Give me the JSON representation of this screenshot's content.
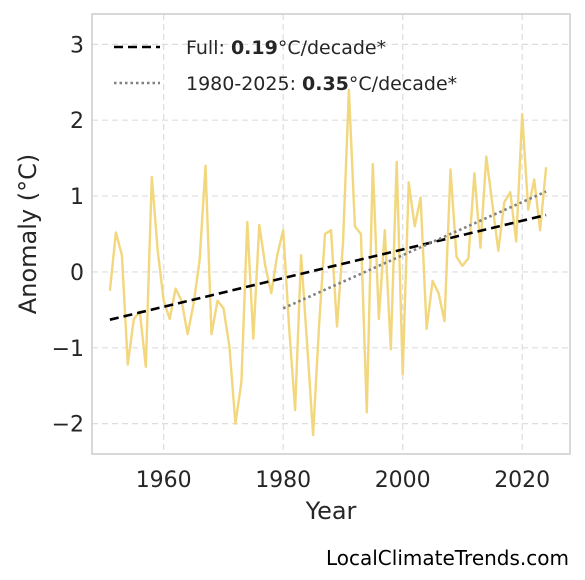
{
  "chart_data": {
    "type": "line",
    "xlabel": "Year",
    "ylabel": "Anomaly (°C)",
    "xlim": [
      1948,
      2028
    ],
    "ylim": [
      -2.4,
      3.4
    ],
    "x_ticks": [
      1960,
      1980,
      2000,
      2020
    ],
    "x_tick_labels": [
      "1960",
      "1980",
      "2000",
      "2020"
    ],
    "y_ticks": [
      -2,
      -1,
      0,
      1,
      2,
      3
    ],
    "y_tick_labels": [
      "−2",
      "−1",
      "0",
      "1",
      "2",
      "3"
    ],
    "grid": true,
    "legend_position": "top-left",
    "series": [
      {
        "style": "solid",
        "color": "#f2d77e",
        "x": [
          1951,
          1952,
          1953,
          1954,
          1955,
          1956,
          1957,
          1958,
          1959,
          1960,
          1961,
          1962,
          1963,
          1964,
          1965,
          1966,
          1967,
          1968,
          1969,
          1970,
          1971,
          1972,
          1973,
          1974,
          1975,
          1976,
          1977,
          1978,
          1979,
          1980,
          1981,
          1982,
          1983,
          1984,
          1985,
          1986,
          1987,
          1988,
          1989,
          1990,
          1991,
          1992,
          1993,
          1994,
          1995,
          1996,
          1997,
          1998,
          1999,
          2000,
          2001,
          2002,
          2003,
          2004,
          2005,
          2006,
          2007,
          2008,
          2009,
          2010,
          2011,
          2012,
          2013,
          2014,
          2015,
          2016,
          2017,
          2018,
          2019,
          2020,
          2021,
          2022,
          2023,
          2024
        ],
        "y": [
          -0.25,
          0.52,
          0.22,
          -1.22,
          -0.62,
          -0.52,
          -1.25,
          1.25,
          0.28,
          -0.38,
          -0.62,
          -0.22,
          -0.38,
          -0.82,
          -0.42,
          0.15,
          1.4,
          -0.82,
          -0.38,
          -0.48,
          -0.98,
          -2.0,
          -1.45,
          0.66,
          -0.88,
          0.62,
          0.08,
          -0.28,
          0.22,
          0.55,
          -0.75,
          -1.82,
          0.22,
          -0.95,
          -2.15,
          -0.72,
          0.5,
          0.55,
          -0.72,
          0.38,
          2.4,
          0.6,
          0.5,
          -1.85,
          1.42,
          -0.62,
          0.55,
          -1.02,
          1.45,
          -1.35,
          1.18,
          0.6,
          0.98,
          -0.75,
          -0.12,
          -0.28,
          -0.65,
          1.35,
          0.2,
          0.08,
          0.18,
          1.3,
          0.32,
          1.52,
          0.9,
          0.28,
          0.92,
          1.05,
          0.4,
          2.08,
          0.82,
          1.22,
          0.55,
          1.38
        ]
      },
      {
        "style": "dashed",
        "color": "#000000",
        "x": [
          1951,
          2024
        ],
        "y": [
          -0.63,
          0.75
        ]
      },
      {
        "style": "dotted",
        "color": "#808080",
        "x": [
          1980,
          2024
        ],
        "y": [
          -0.48,
          1.06
        ]
      }
    ],
    "legend": [
      {
        "prefix": "Full: ",
        "value": "0.19",
        "suffix": "°C/decade*",
        "style": "dashed",
        "color": "#000000"
      },
      {
        "prefix": "1980-2025: ",
        "value": "0.35",
        "suffix": "°C/decade*",
        "style": "dotted",
        "color": "#808080"
      }
    ]
  },
  "watermark": "LocalClimateTrends.com"
}
